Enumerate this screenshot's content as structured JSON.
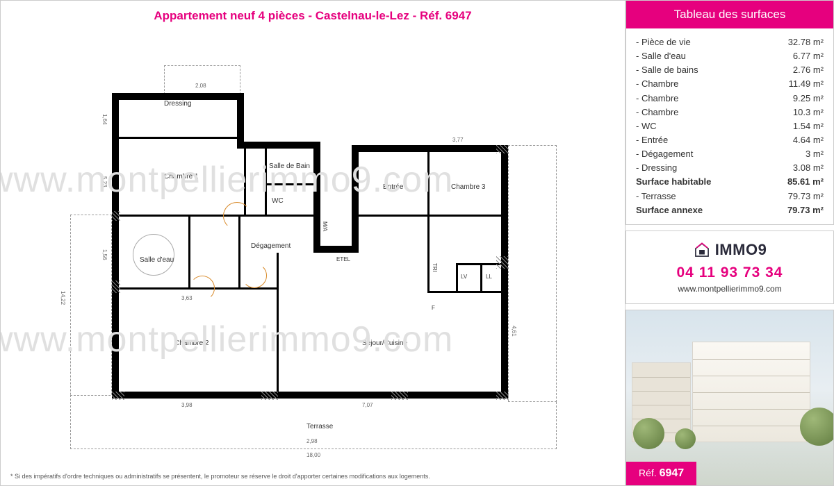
{
  "title": "Appartement neuf 4 pièces - Castelnau-le-Lez - Réf. 6947",
  "watermark": "www.montpellierimmo9.com",
  "disclaimer": "* Si des impératifs d'ordre techniques ou administratifs se présentent, le promoteur se réserve le droit d'apporter certaines modifications aux logements.",
  "surfaces": {
    "header": "Tableau des surfaces",
    "rows": [
      {
        "label": "- Pièce de vie",
        "value": "32.78 m²",
        "bold": false
      },
      {
        "label": "- Salle d'eau",
        "value": "6.77 m²",
        "bold": false
      },
      {
        "label": "- Salle de bains",
        "value": "2.76 m²",
        "bold": false
      },
      {
        "label": "- Chambre",
        "value": "11.49 m²",
        "bold": false
      },
      {
        "label": "- Chambre",
        "value": "9.25 m²",
        "bold": false
      },
      {
        "label": "- Chambre",
        "value": "10.3 m²",
        "bold": false
      },
      {
        "label": "- WC",
        "value": "1.54 m²",
        "bold": false
      },
      {
        "label": "- Entrée",
        "value": "4.64 m²",
        "bold": false
      },
      {
        "label": "- Dégagement",
        "value": "3 m²",
        "bold": false
      },
      {
        "label": "- Dressing",
        "value": "3.08 m²",
        "bold": false
      },
      {
        "label": "Surface habitable",
        "value": "85.61 m²",
        "bold": true
      },
      {
        "label": "- Terrasse",
        "value": "79.73 m²",
        "bold": false
      },
      {
        "label": "Surface annexe",
        "value": "79.73 m²",
        "bold": true
      }
    ]
  },
  "contact": {
    "logo_text": "IMMO9",
    "phone": "04 11 93 73 34",
    "website": "www.montpellierimmo9.com"
  },
  "ref": {
    "label": "Réf.",
    "number": "6947"
  },
  "colors": {
    "accent": "#e6007e",
    "border": "#cccccc",
    "wall": "#000000",
    "door": "#d88a2a",
    "watermark": "#e0e0e0"
  },
  "rooms": {
    "dressing": "Dressing",
    "chambre1": "Chambre 1",
    "chambre2": "Chambre 2",
    "chambre3": "Chambre 3",
    "sdb": "Salle de Bain",
    "wc": "WC",
    "salle_eau": "Salle d'eau",
    "degagement": "Dégagement",
    "entree": "Entrée",
    "sejour": "Séjour/Cuisine",
    "terrasse": "Terrasse",
    "ma": "M/A",
    "etel": "ETEL",
    "tri": "TRI",
    "f": "F",
    "lv": "LV",
    "ll": "LL"
  },
  "dims": {
    "d_18": "18,00",
    "d_298": "2,98",
    "d_707": "7,07",
    "d_398": "3,98",
    "d_363": "3,63",
    "d_461": "4,61",
    "d_1422": "14,22",
    "d_156": "1,56",
    "d_523": "5,23",
    "d_164": "1,64",
    "d_377": "3,77",
    "d_208": "2,08"
  }
}
